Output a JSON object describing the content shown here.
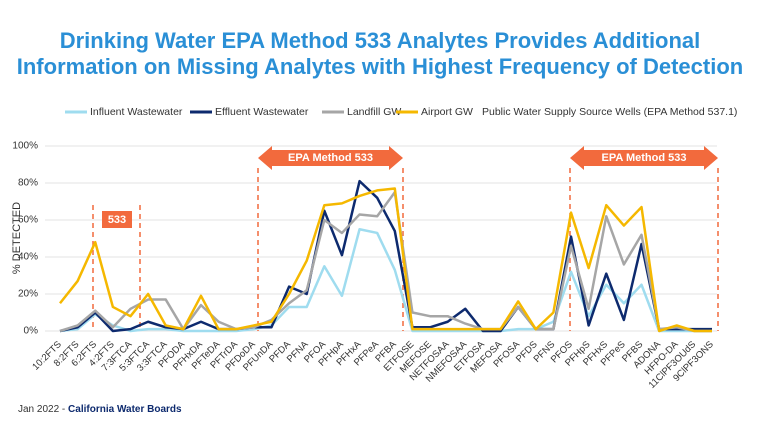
{
  "chart_data": {
    "type": "line",
    "title": [
      "Drinking Water EPA Method 533 Analytes Provides Additional",
      "Information on Missing Analytes with Highest Frequency of Detection"
    ],
    "ylabel": "% DETECTED",
    "categories": [
      "10:2FTS",
      "8:2FTS",
      "6:2FTS",
      "4:2FTS",
      "7:3FTCA",
      "5:3FTCA",
      "3:3FTCA",
      "PFODA",
      "PFHxDA",
      "PFTeDA",
      "PFTrDA",
      "PFDoDA",
      "PFUnDA",
      "PFDA",
      "PFNA",
      "PFOA",
      "PFHpA",
      "PFHxA",
      "PFPeA",
      "PFBA",
      "ETFOSE",
      "MEFOSE",
      "NETFOSAA",
      "NMEFOSAA",
      "ETFOSA",
      "MEFOSA",
      "PFOSA",
      "PFDS",
      "PFNS",
      "PFOS",
      "PFHpS",
      "PFHxS",
      "PFPeS",
      "PFBS",
      "ADONA",
      "HFPO-DA",
      "11ClPF3OUdS",
      "9ClPF3ONS"
    ],
    "series": [
      {
        "name": "Influent Wastewater",
        "color": "#9fdcef",
        "values": [
          0,
          1,
          9,
          3,
          0,
          1,
          1,
          0,
          0,
          0,
          0,
          1,
          3,
          13,
          13,
          35,
          19,
          55,
          53,
          33,
          0,
          0,
          0,
          0,
          0,
          0,
          1,
          1,
          5,
          32,
          8,
          25,
          15,
          25,
          0,
          0,
          0,
          0
        ]
      },
      {
        "name": "Effluent Wastewater",
        "color": "#0d2a6e",
        "values": [
          0,
          2,
          10,
          0,
          1,
          5,
          2,
          1,
          5,
          1,
          1,
          2,
          2,
          24,
          20,
          65,
          41,
          81,
          72,
          54,
          2,
          2,
          5,
          12,
          0,
          0,
          13,
          1,
          1,
          51,
          3,
          31,
          6,
          47,
          1,
          1,
          1,
          1
        ]
      },
      {
        "name": "Landfill GW",
        "color": "#a6a6a6",
        "values": [
          0,
          3,
          11,
          2,
          12,
          17,
          17,
          1,
          14,
          5,
          1,
          2,
          6,
          15,
          22,
          60,
          53,
          63,
          62,
          75,
          10,
          8,
          8,
          4,
          1,
          1,
          13,
          1,
          1,
          46,
          12,
          62,
          36,
          52,
          1,
          2,
          0,
          0
        ]
      },
      {
        "name": "Airport GW",
        "color": "#f5b800",
        "values": [
          15,
          27,
          48,
          13,
          8,
          20,
          3,
          1,
          19,
          1,
          1,
          3,
          5,
          20,
          38,
          68,
          69,
          73,
          76,
          77,
          1,
          1,
          1,
          1,
          1,
          1,
          16,
          1,
          10,
          64,
          34,
          68,
          57,
          67,
          0,
          3,
          0,
          0
        ]
      }
    ],
    "legend_note": "Public Water Supply Source Wells (EPA Method 537.1)",
    "ylim": [
      0,
      100
    ],
    "yticks": [
      {
        "value": 0,
        "label": "0%"
      },
      {
        "value": 20,
        "label": "20%"
      },
      {
        "value": 40,
        "label": "40%"
      },
      {
        "value": 60,
        "label": "60%"
      },
      {
        "value": 80,
        "label": "80%"
      },
      {
        "value": 100,
        "label": "100%"
      }
    ],
    "grid": true,
    "annotations": [
      "EPA Method 533",
      "EPA Method 533",
      "533"
    ],
    "footer": {
      "date": "Jan 2022 - ",
      "source": "California Water Boards"
    }
  }
}
